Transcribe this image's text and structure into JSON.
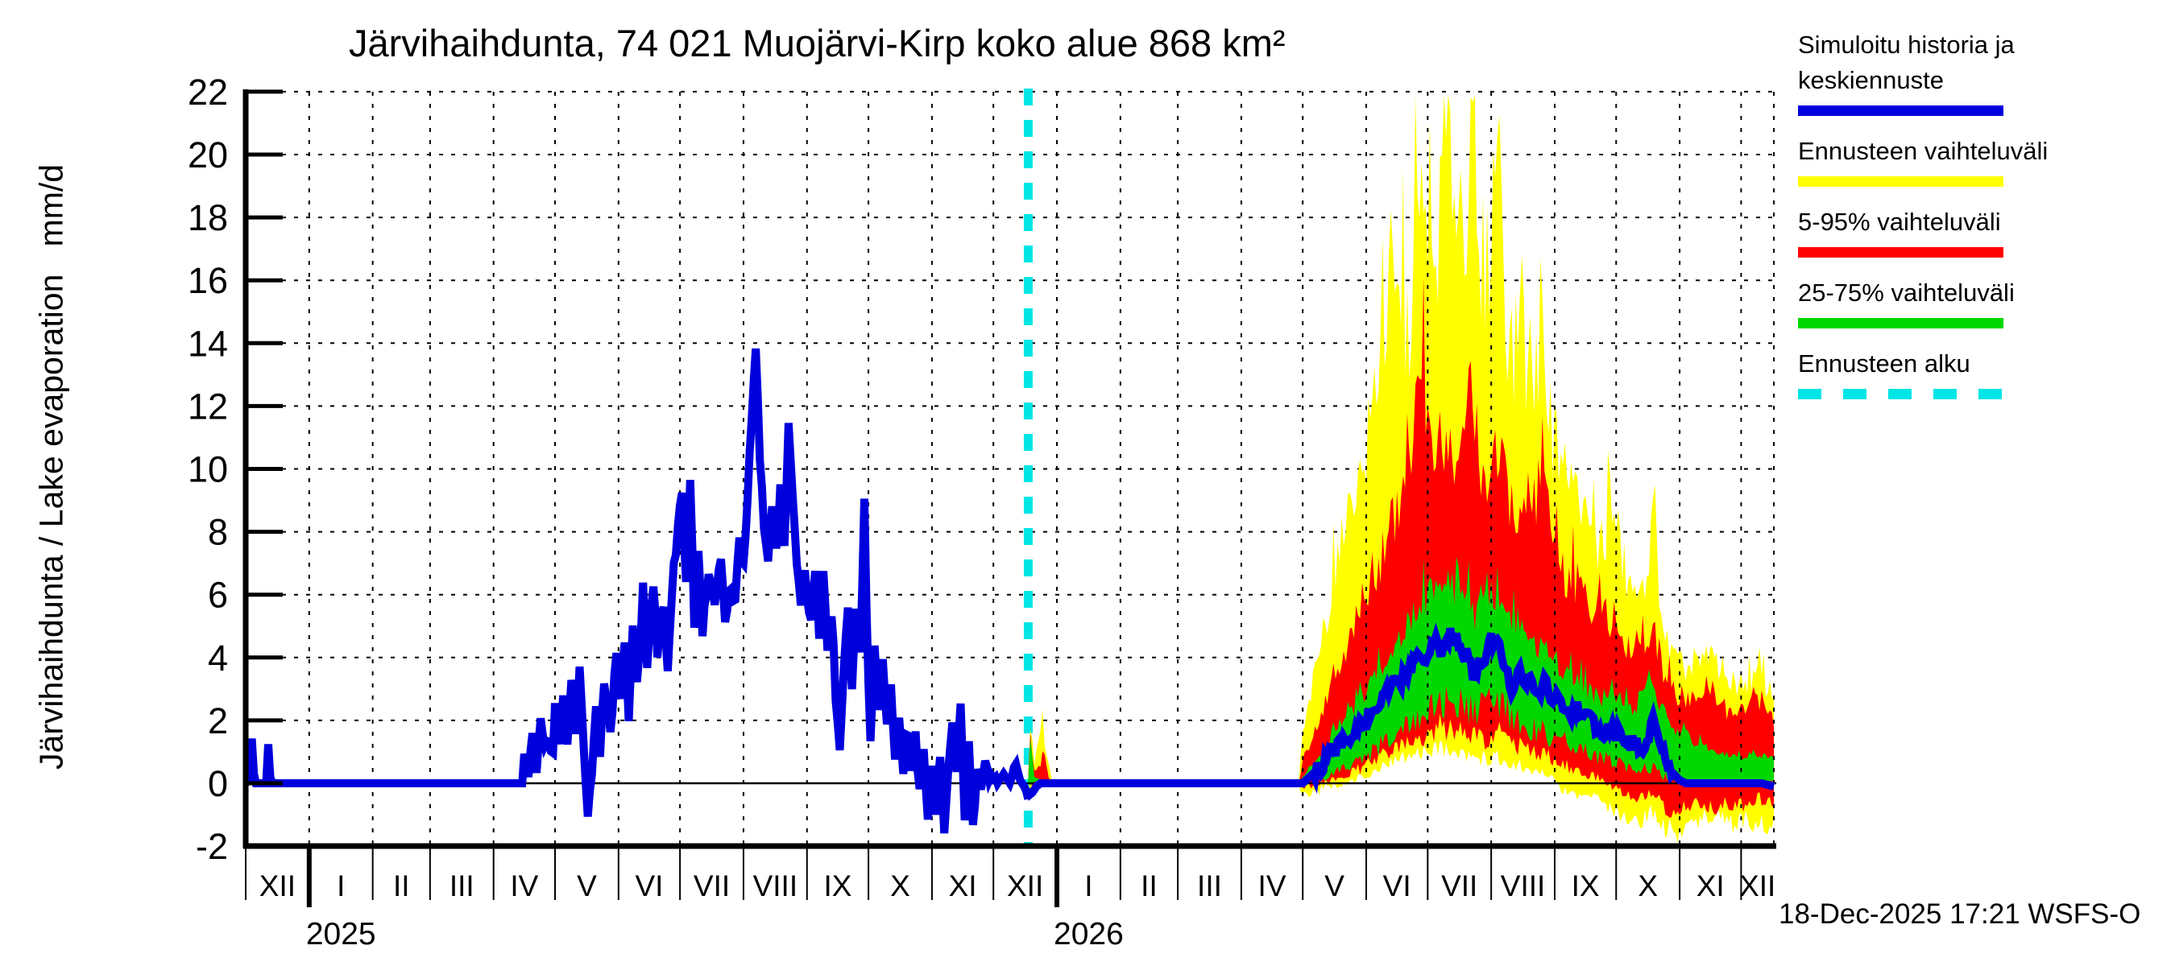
{
  "chart_data": {
    "type": "area",
    "title": "Järvihaihdunta, 74 021 Muojärvi-Kirp koko alue 868 km²",
    "ylabel": "Järvihaihdunta / Lake evaporation   mm/d",
    "timestamp": "18-Dec-2025 17:21 WSFS-O",
    "ylim": [
      -2,
      22
    ],
    "yticks": [
      22,
      20,
      18,
      16,
      14,
      12,
      10,
      8,
      6,
      4,
      2,
      0,
      -2
    ],
    "grid": "dashed, every 2 units horizontal, every month vertical",
    "x_axis": {
      "start": "2024-12-01",
      "end": "2026-12-17",
      "month_boundaries": [
        0,
        31,
        62,
        90,
        121,
        151,
        182,
        212,
        243,
        274,
        304,
        335,
        365,
        396,
        427,
        455,
        486,
        516,
        547,
        577,
        608,
        639,
        669,
        700,
        730,
        746
      ],
      "month_labels": [
        "XII",
        "I",
        "II",
        "III",
        "IV",
        "V",
        "VI",
        "VII",
        "VIII",
        "IX",
        "X",
        "XI",
        "XII",
        "I",
        "II",
        "III",
        "IV",
        "V",
        "VI",
        "VII",
        "VIII",
        "IX",
        "X",
        "XI",
        "XII"
      ],
      "year_tick_days": [
        31,
        396
      ],
      "years": [
        {
          "label": "2025",
          "day": 46.5
        },
        {
          "label": "2026",
          "day": 411.5
        }
      ]
    },
    "forecast_start": {
      "label": "Ennusteen alku",
      "date": "2025-12-18",
      "day": 382
    },
    "colors": {
      "history_and_median": "#0000dd",
      "range_minmax": "#ffff00",
      "band_5_95": "#ff0000",
      "band_25_75": "#00d800",
      "forecast_start_line": "#00e5e5",
      "axis": "#000000",
      "background": "#ffffff"
    },
    "legend": [
      {
        "label": "Simuloitu historia ja\nkeskiennuste",
        "color": "#0000dd",
        "style": "solid",
        "name": "history-median-swatch"
      },
      {
        "label": "Ennusteen vaihteluväli",
        "color": "#ffff00",
        "style": "solid",
        "name": "range-swatch"
      },
      {
        "label": "5-95% vaihteluväli",
        "color": "#ff0000",
        "style": "solid",
        "name": "p5-95-swatch"
      },
      {
        "label": "25-75% vaihteluväli",
        "color": "#00d800",
        "style": "solid",
        "name": "p25-75-swatch"
      },
      {
        "label": "Ennusteen alku",
        "color": "#00e5e5",
        "style": "dashed",
        "name": "forecast-start-swatch"
      }
    ],
    "series": {
      "history_median_mm_d": [
        [
          0,
          0
        ],
        [
          2,
          0.1
        ],
        [
          3,
          1.7
        ],
        [
          4,
          0.3
        ],
        [
          5,
          0
        ],
        [
          10,
          0
        ],
        [
          11,
          1.1
        ],
        [
          12,
          0.2
        ],
        [
          13,
          0
        ],
        [
          135,
          0
        ],
        [
          136,
          0.8
        ],
        [
          138,
          0.2
        ],
        [
          140,
          1.6
        ],
        [
          142,
          0.6
        ],
        [
          144,
          2.1
        ],
        [
          146,
          1.0
        ],
        [
          148,
          1.4
        ],
        [
          150,
          0.9
        ],
        [
          151,
          2.3
        ],
        [
          153,
          1.1
        ],
        [
          155,
          2.8
        ],
        [
          157,
          1.4
        ],
        [
          159,
          3.3
        ],
        [
          161,
          1.8
        ],
        [
          163,
          3.6
        ],
        [
          165,
          0.9
        ],
        [
          167,
          -0.9
        ],
        [
          169,
          0.4
        ],
        [
          171,
          2.2
        ],
        [
          173,
          1.1
        ],
        [
          175,
          3.1
        ],
        [
          178,
          1.6
        ],
        [
          181,
          4.2
        ],
        [
          183,
          2.6
        ],
        [
          185,
          4.4
        ],
        [
          187,
          2.2
        ],
        [
          189,
          5.2
        ],
        [
          191,
          3.0
        ],
        [
          194,
          6.1
        ],
        [
          196,
          3.4
        ],
        [
          199,
          6.5
        ],
        [
          201,
          4.1
        ],
        [
          204,
          5.8
        ],
        [
          206,
          3.6
        ],
        [
          209,
          6.9
        ],
        [
          211,
          8.2
        ],
        [
          213,
          9.3
        ],
        [
          215,
          6.5
        ],
        [
          217,
          9.4
        ],
        [
          219,
          5.2
        ],
        [
          221,
          7.6
        ],
        [
          223,
          4.7
        ],
        [
          226,
          6.8
        ],
        [
          229,
          5.5
        ],
        [
          232,
          7.2
        ],
        [
          234,
          4.9
        ],
        [
          237,
          6.4
        ],
        [
          239,
          5.7
        ],
        [
          241,
          7.8
        ],
        [
          243,
          6.9
        ],
        [
          245,
          9.1
        ],
        [
          247,
          11.8
        ],
        [
          249,
          14.0
        ],
        [
          251,
          10.2
        ],
        [
          253,
          8.3
        ],
        [
          255,
          6.9
        ],
        [
          257,
          8.8
        ],
        [
          259,
          7.2
        ],
        [
          261,
          9.4
        ],
        [
          263,
          7.6
        ],
        [
          265,
          11.6
        ],
        [
          267,
          9.0
        ],
        [
          269,
          7.1
        ],
        [
          271,
          5.9
        ],
        [
          273,
          6.6
        ],
        [
          276,
          5.2
        ],
        [
          278,
          6.6
        ],
        [
          280,
          4.8
        ],
        [
          282,
          6.9
        ],
        [
          284,
          4.2
        ],
        [
          286,
          5.4
        ],
        [
          288,
          2.9
        ],
        [
          290,
          1.3
        ],
        [
          292,
          3.6
        ],
        [
          294,
          5.3
        ],
        [
          296,
          3.1
        ],
        [
          298,
          5.6
        ],
        [
          300,
          4.0
        ],
        [
          302,
          9.0
        ],
        [
          303,
          5.5
        ],
        [
          305,
          1.2
        ],
        [
          307,
          4.3
        ],
        [
          309,
          2.4
        ],
        [
          311,
          3.8
        ],
        [
          313,
          1.6
        ],
        [
          315,
          2.9
        ],
        [
          317,
          0.8
        ],
        [
          319,
          2.2
        ],
        [
          321,
          0.3
        ],
        [
          323,
          1.8
        ],
        [
          325,
          0.6
        ],
        [
          327,
          1.4
        ],
        [
          329,
          -0.4
        ],
        [
          331,
          0.9
        ],
        [
          333,
          -1.2
        ],
        [
          335,
          0.6
        ],
        [
          337,
          -0.8
        ],
        [
          339,
          1.1
        ],
        [
          341,
          -1.4
        ],
        [
          343,
          0.7
        ],
        [
          345,
          1.9
        ],
        [
          347,
          0.4
        ],
        [
          349,
          2.3
        ],
        [
          351,
          -0.9
        ],
        [
          353,
          1.2
        ],
        [
          355,
          -1.3
        ],
        [
          357,
          0.5
        ],
        [
          359,
          -0.2
        ],
        [
          361,
          0.8
        ],
        [
          363,
          0.1
        ],
        [
          365,
          0.4
        ],
        [
          367,
          0
        ],
        [
          370,
          0.3
        ],
        [
          373,
          0
        ],
        [
          376,
          0.6
        ],
        [
          378,
          0.1
        ],
        [
          380,
          -0.1
        ],
        [
          382,
          -0.4
        ]
      ],
      "forecast_median_mm_d": [
        [
          382,
          -0.4
        ],
        [
          384,
          -0.3
        ],
        [
          386,
          -0.1
        ],
        [
          388,
          0
        ],
        [
          395,
          0
        ],
        [
          516,
          0
        ],
        [
          521,
          0.3
        ],
        [
          526,
          0.6
        ],
        [
          531,
          1.0
        ],
        [
          536,
          1.3
        ],
        [
          541,
          1.7
        ],
        [
          546,
          2.0
        ],
        [
          552,
          2.4
        ],
        [
          557,
          2.8
        ],
        [
          562,
          3.2
        ],
        [
          567,
          3.5
        ],
        [
          572,
          3.9
        ],
        [
          577,
          4.2
        ],
        [
          582,
          4.5
        ],
        [
          585,
          4.2
        ],
        [
          588,
          4.8
        ],
        [
          592,
          4.4
        ],
        [
          596,
          4.0
        ],
        [
          600,
          3.3
        ],
        [
          604,
          3.9
        ],
        [
          607,
          4.4
        ],
        [
          610,
          4.6
        ],
        [
          614,
          3.8
        ],
        [
          618,
          3.1
        ],
        [
          622,
          3.6
        ],
        [
          626,
          3.2
        ],
        [
          630,
          2.9
        ],
        [
          634,
          3.1
        ],
        [
          638,
          2.7
        ],
        [
          643,
          2.5
        ],
        [
          647,
          2.2
        ],
        [
          651,
          2.4
        ],
        [
          655,
          2.0
        ],
        [
          659,
          1.8
        ],
        [
          663,
          1.6
        ],
        [
          667,
          1.7
        ],
        [
          671,
          1.5
        ],
        [
          675,
          1.3
        ],
        [
          679,
          1.2
        ],
        [
          683,
          1.0
        ],
        [
          687,
          2.0
        ],
        [
          690,
          1.6
        ],
        [
          693,
          0.8
        ],
        [
          697,
          0.3
        ],
        [
          700,
          0.1
        ],
        [
          703,
          0
        ],
        [
          740,
          0
        ],
        [
          746,
          -0.1
        ]
      ],
      "band_minmax_lo_hi": [
        [
          382,
          0,
          0.3
        ],
        [
          383,
          -0.2,
          1.6
        ],
        [
          385,
          -0.3,
          0.6
        ],
        [
          388,
          0,
          1.8
        ],
        [
          389,
          0,
          2.4
        ],
        [
          390,
          0,
          1.3
        ],
        [
          392,
          0,
          0.6
        ],
        [
          394,
          0,
          0
        ],
        [
          514,
          0,
          0
        ],
        [
          516,
          -0.3,
          1.5
        ],
        [
          525,
          -0.2,
          4.5
        ],
        [
          535,
          0,
          7.5
        ],
        [
          546,
          0.2,
          10
        ],
        [
          553,
          0.5,
          13.5
        ],
        [
          560,
          0.6,
          15.5
        ],
        [
          567,
          0.8,
          14
        ],
        [
          574,
          1,
          18.5
        ],
        [
          576,
          1,
          16
        ],
        [
          581,
          1.2,
          16.5
        ],
        [
          586,
          1.2,
          20.3
        ],
        [
          590,
          1,
          19.5
        ],
        [
          594,
          1,
          16.5
        ],
        [
          598,
          0.9,
          20.5
        ],
        [
          602,
          0.8,
          15.5
        ],
        [
          607,
          0.8,
          16.8
        ],
        [
          611,
          0.8,
          21.2
        ],
        [
          615,
          0.7,
          15
        ],
        [
          619,
          0.6,
          13.5
        ],
        [
          623,
          0.5,
          14.5
        ],
        [
          627,
          0.4,
          12.5
        ],
        [
          633,
          0.3,
          13.8
        ],
        [
          638,
          0.2,
          11
        ],
        [
          644,
          -0.3,
          10
        ],
        [
          650,
          -0.5,
          9
        ],
        [
          656,
          -0.4,
          8
        ],
        [
          662,
          -0.6,
          7.2
        ],
        [
          667,
          -0.8,
          8.8
        ],
        [
          674,
          -1,
          6.5
        ],
        [
          680,
          -1.2,
          5.5
        ],
        [
          687,
          -0.9,
          8.2
        ],
        [
          693,
          -1.4,
          4.5
        ],
        [
          699,
          -1.6,
          3.8
        ],
        [
          707,
          -1.2,
          3.5
        ],
        [
          716,
          -1,
          4.2
        ],
        [
          723,
          -1.3,
          3
        ],
        [
          731,
          -1.1,
          3.2
        ],
        [
          739,
          -1.4,
          3.4
        ],
        [
          746,
          -1.2,
          2.8
        ]
      ],
      "band_5_95_lo_hi": [
        [
          382,
          0,
          0.2
        ],
        [
          383,
          0,
          1.5
        ],
        [
          385,
          -0.1,
          0.4
        ],
        [
          388,
          0,
          0.5
        ],
        [
          389,
          0,
          1.0
        ],
        [
          390,
          0,
          0.9
        ],
        [
          392,
          0,
          0.2
        ],
        [
          394,
          0,
          0
        ],
        [
          514,
          0,
          0
        ],
        [
          516,
          -0.1,
          0.6
        ],
        [
          525,
          0,
          2.2
        ],
        [
          535,
          0.2,
          4
        ],
        [
          546,
          0.5,
          5.5
        ],
        [
          556,
          0.9,
          7.5
        ],
        [
          566,
          1.2,
          9.5
        ],
        [
          575,
          1.5,
          13
        ],
        [
          576,
          1.5,
          11.5
        ],
        [
          584,
          1.8,
          10.5
        ],
        [
          592,
          1.6,
          9.8
        ],
        [
          598,
          1.5,
          12.8
        ],
        [
          604,
          1.4,
          9.5
        ],
        [
          611,
          1.6,
          10.2
        ],
        [
          618,
          1.3,
          9
        ],
        [
          625,
          1.1,
          8.2
        ],
        [
          633,
          0.9,
          9.8
        ],
        [
          638,
          0.8,
          7.5
        ],
        [
          646,
          0.5,
          6.5
        ],
        [
          654,
          0.3,
          5.8
        ],
        [
          662,
          0.1,
          5.2
        ],
        [
          670,
          -0.2,
          4.8
        ],
        [
          678,
          -0.5,
          4.2
        ],
        [
          687,
          -0.3,
          4.6
        ],
        [
          693,
          -0.8,
          3.4
        ],
        [
          699,
          -0.9,
          2.8
        ],
        [
          707,
          -0.7,
          2.6
        ],
        [
          716,
          -0.8,
          3.0
        ],
        [
          723,
          -0.6,
          2.2
        ],
        [
          731,
          -0.7,
          2.4
        ],
        [
          739,
          -0.5,
          2.6
        ],
        [
          746,
          -0.6,
          2.0
        ]
      ],
      "band_25_75_lo_hi": [
        [
          382,
          0,
          0.1
        ],
        [
          383,
          0,
          1.4
        ],
        [
          385,
          0,
          0.2
        ],
        [
          388,
          0,
          0.1
        ],
        [
          390,
          0,
          0.1
        ],
        [
          392,
          0,
          0
        ],
        [
          514,
          0,
          0
        ],
        [
          516,
          0,
          0.2
        ],
        [
          525,
          0.1,
          0.9
        ],
        [
          535,
          0.4,
          1.9
        ],
        [
          546,
          0.8,
          2.8
        ],
        [
          556,
          1.3,
          3.9
        ],
        [
          566,
          1.8,
          4.9
        ],
        [
          576,
          2.2,
          5.9
        ],
        [
          584,
          2.6,
          6.3
        ],
        [
          592,
          2.5,
          6.0
        ],
        [
          600,
          2.2,
          5.4
        ],
        [
          607,
          2.6,
          6.1
        ],
        [
          614,
          2.3,
          5.6
        ],
        [
          622,
          2.0,
          5.0
        ],
        [
          630,
          1.7,
          4.4
        ],
        [
          638,
          1.5,
          4.0
        ],
        [
          646,
          1.2,
          3.4
        ],
        [
          654,
          1.0,
          3.0
        ],
        [
          662,
          0.8,
          2.7
        ],
        [
          670,
          0.6,
          2.6
        ],
        [
          678,
          0.4,
          2.3
        ],
        [
          686,
          0.5,
          3.3
        ],
        [
          692,
          0.2,
          2.2
        ],
        [
          699,
          0,
          1.6
        ],
        [
          707,
          0,
          1.3
        ],
        [
          715,
          0,
          1.1
        ],
        [
          723,
          0,
          0.9
        ],
        [
          731,
          0,
          0.8
        ],
        [
          739,
          0,
          0.9
        ],
        [
          746,
          0,
          0.8
        ]
      ]
    }
  }
}
